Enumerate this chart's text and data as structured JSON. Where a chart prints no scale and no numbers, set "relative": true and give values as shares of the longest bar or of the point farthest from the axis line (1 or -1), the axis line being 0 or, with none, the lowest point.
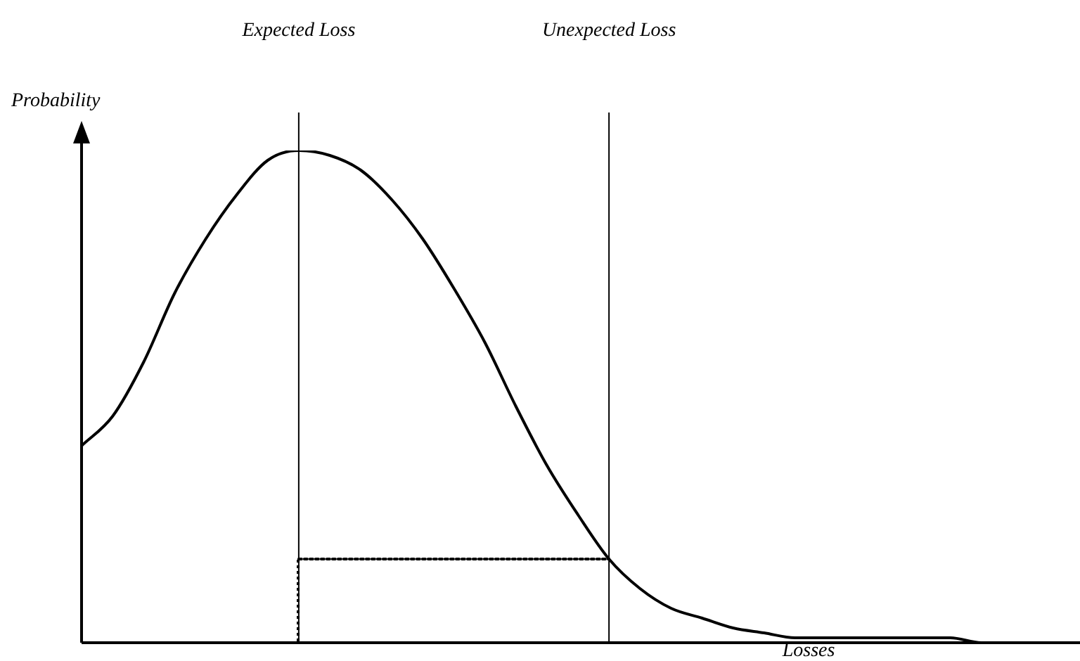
{
  "chart_data": {
    "type": "line",
    "relative": true,
    "xlabel": "Losses",
    "ylabel": "Probability",
    "categories": [
      null,
      null,
      null,
      null,
      null,
      null,
      null,
      null,
      null,
      null,
      null,
      null,
      null,
      null,
      null,
      null,
      null,
      null,
      null,
      null,
      null,
      null,
      null,
      null,
      null,
      null,
      null,
      null,
      null,
      null,
      null,
      null,
      null
    ],
    "series": [
      {
        "color": "#000000",
        "line_style": "solid",
        "values": [
          0.4,
          0.46,
          0.57,
          0.71,
          0.82,
          0.91,
          0.98,
          1.0,
          0.99,
          0.96,
          0.9,
          0.82,
          0.72,
          0.61,
          0.48,
          0.36,
          0.26,
          0.17,
          0.11,
          0.07,
          0.05,
          0.03,
          0.02,
          0.01,
          0.01,
          0.01,
          0.01,
          0.01,
          0.01,
          0.0,
          0.0,
          null,
          null
        ]
      },
      {
        "color": "#000000",
        "line_style": "dotted",
        "values": [
          null,
          null,
          null,
          null,
          null,
          null,
          null,
          0.17,
          0.17,
          0.17,
          0.17,
          0.17,
          0.17,
          0.17,
          0.17,
          0.17,
          0.17,
          0.17,
          null,
          null,
          null,
          null,
          null,
          null,
          null,
          null,
          null,
          null,
          null,
          null,
          null,
          null,
          null
        ]
      }
    ],
    "annotations": [
      "Expected Loss",
      "Unexpected Loss"
    ],
    "legend": false,
    "marker": "none"
  }
}
